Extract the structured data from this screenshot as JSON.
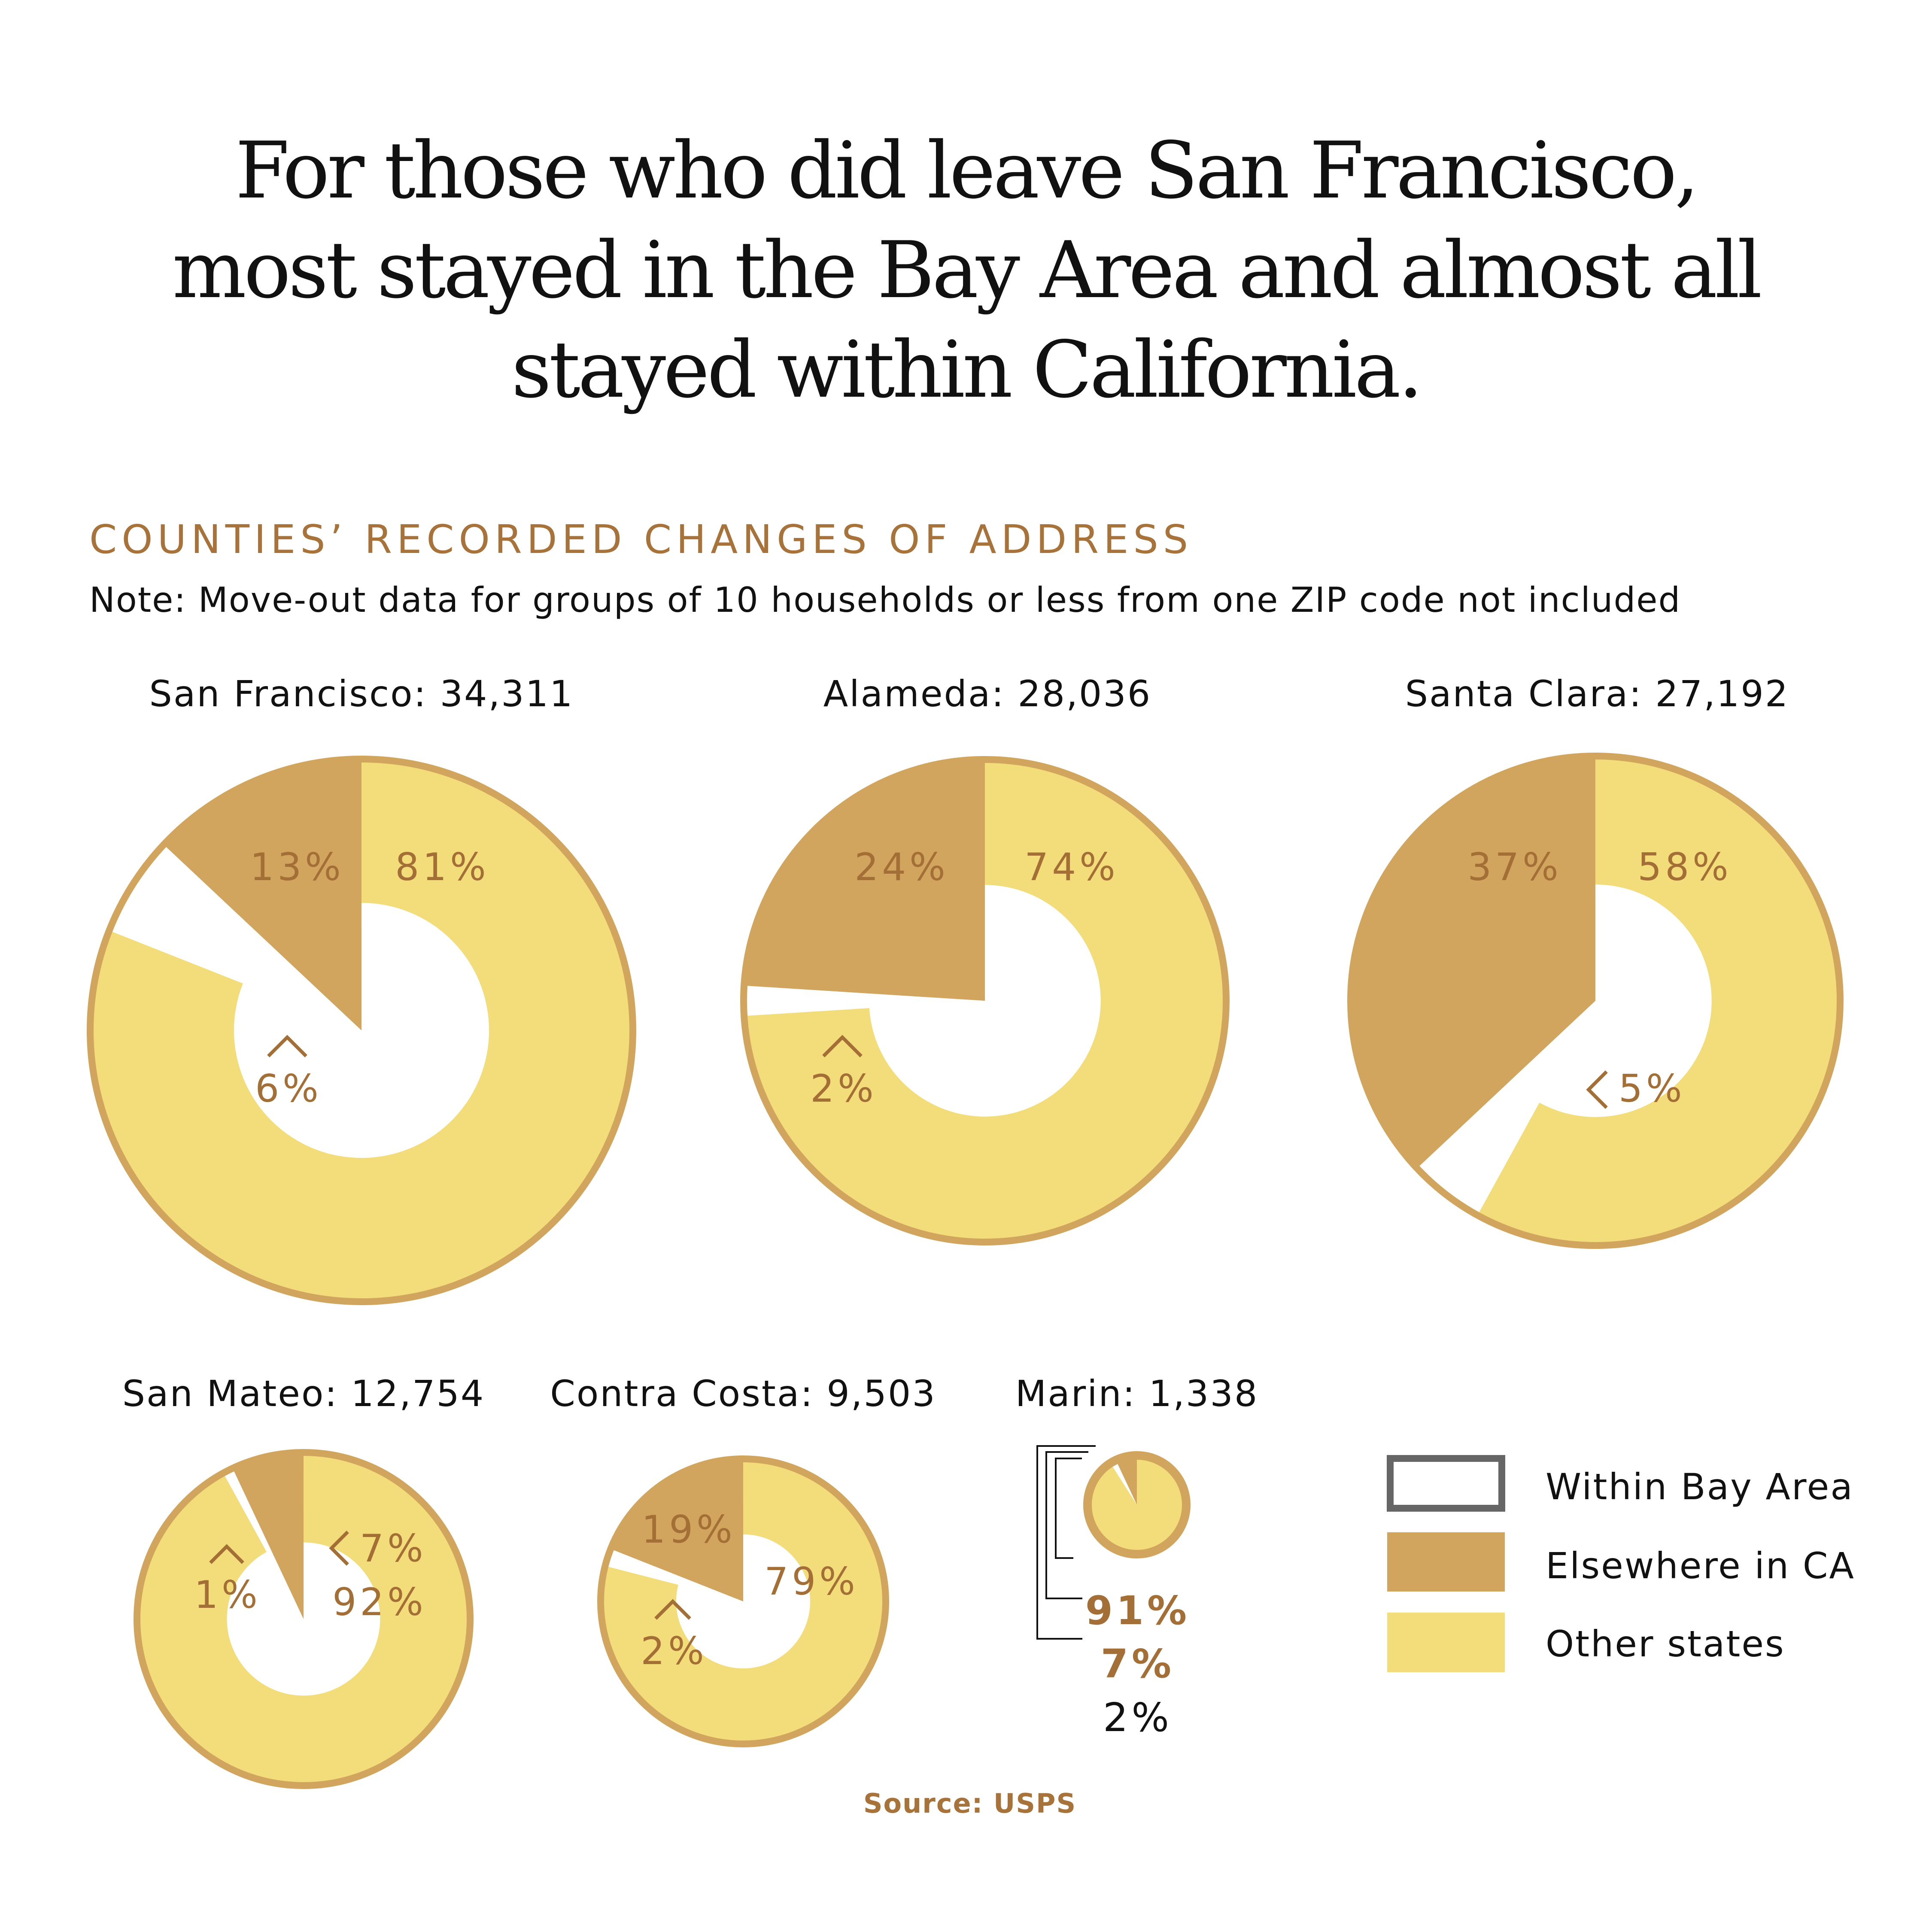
{
  "title_lines": [
    "For those who did leave San Francisco,",
    "most stayed in the Bay Area and almost all",
    "stayed within California."
  ],
  "subtitle": "COUNTIES’ RECORDED CHANGES OF ADDRESS",
  "note": "Note: Move-out data for groups of 10 households or less from one ZIP code not included",
  "source": "Source:  USPS",
  "colors": {
    "within_bay_area": "#ffffff",
    "elsewhere_in_ca": "#d2a55e",
    "other_states": "#f2dd7a",
    "label": "#a46f36",
    "legend_outline": "#666666"
  },
  "legend": [
    {
      "label": "Within Bay Area"
    },
    {
      "label": "Elsewhere in CA"
    },
    {
      "label": "Other states"
    }
  ],
  "chart_data": {
    "type": "pie",
    "subtype": "donut",
    "legend_placement": "bottom-right",
    "categories": [
      "Other states",
      "Within Bay Area",
      "Elsewhere in CA"
    ],
    "counties": [
      {
        "name": "San Francisco",
        "label": "San Francisco: 34,311",
        "total": 34311,
        "values": [
          81,
          6,
          13
        ],
        "labels": [
          "81%",
          "6%",
          "13%"
        ]
      },
      {
        "name": "Alameda",
        "label": "Alameda: 28,036",
        "total": 28036,
        "values": [
          74,
          2,
          24
        ],
        "labels": [
          "74%",
          "2%",
          "24%"
        ]
      },
      {
        "name": "Santa Clara",
        "label": "Santa Clara: 27,192",
        "total": 27192,
        "values": [
          58,
          5,
          37
        ],
        "labels": [
          "58%",
          "5%",
          "37%"
        ]
      },
      {
        "name": "San Mateo",
        "label": "San Mateo: 12,754",
        "total": 12754,
        "values": [
          92,
          1,
          7
        ],
        "labels": [
          "92%",
          "1%",
          "7%"
        ]
      },
      {
        "name": "Contra Costa",
        "label": "Contra Costa: 9,503",
        "total": 9503,
        "values": [
          79,
          2,
          19
        ],
        "labels": [
          "79%",
          "2%",
          "19%"
        ]
      },
      {
        "name": "Marin",
        "label": "Marin: 1,338",
        "total": 1338,
        "values": [
          91,
          2,
          7
        ],
        "labels": [
          "91%",
          "2%",
          "7%"
        ]
      }
    ]
  }
}
